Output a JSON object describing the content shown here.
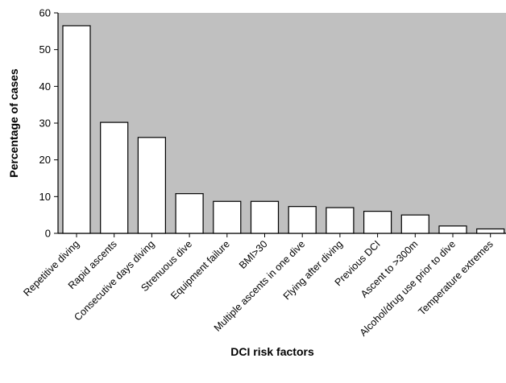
{
  "chart_data": {
    "type": "bar",
    "title": "",
    "xlabel": "DCI risk factors",
    "ylabel": "Percentage of cases",
    "ylim": [
      0,
      60
    ],
    "yticks": [
      0,
      10,
      20,
      30,
      40,
      50,
      60
    ],
    "categories": [
      "Repetitive diving",
      "Rapid ascents",
      "Consecutive days diving",
      "Strenuous dive",
      "Equipment failure",
      "BMI>30",
      "Multiple ascents in one dive",
      "Flying after diving",
      "Previous DCI",
      "Ascent to >300m",
      "Alcohol/drug use prior to dive",
      "Temperature extremes"
    ],
    "values": [
      56.5,
      30.2,
      26.1,
      10.8,
      8.7,
      8.7,
      7.3,
      7.0,
      6.0,
      5.0,
      2.0,
      1.2
    ],
    "grid": false,
    "legend": "none",
    "colors": {
      "plot_background": "#c0c0c0",
      "bar_fill": "#ffffff",
      "bar_stroke": "#000000"
    }
  }
}
